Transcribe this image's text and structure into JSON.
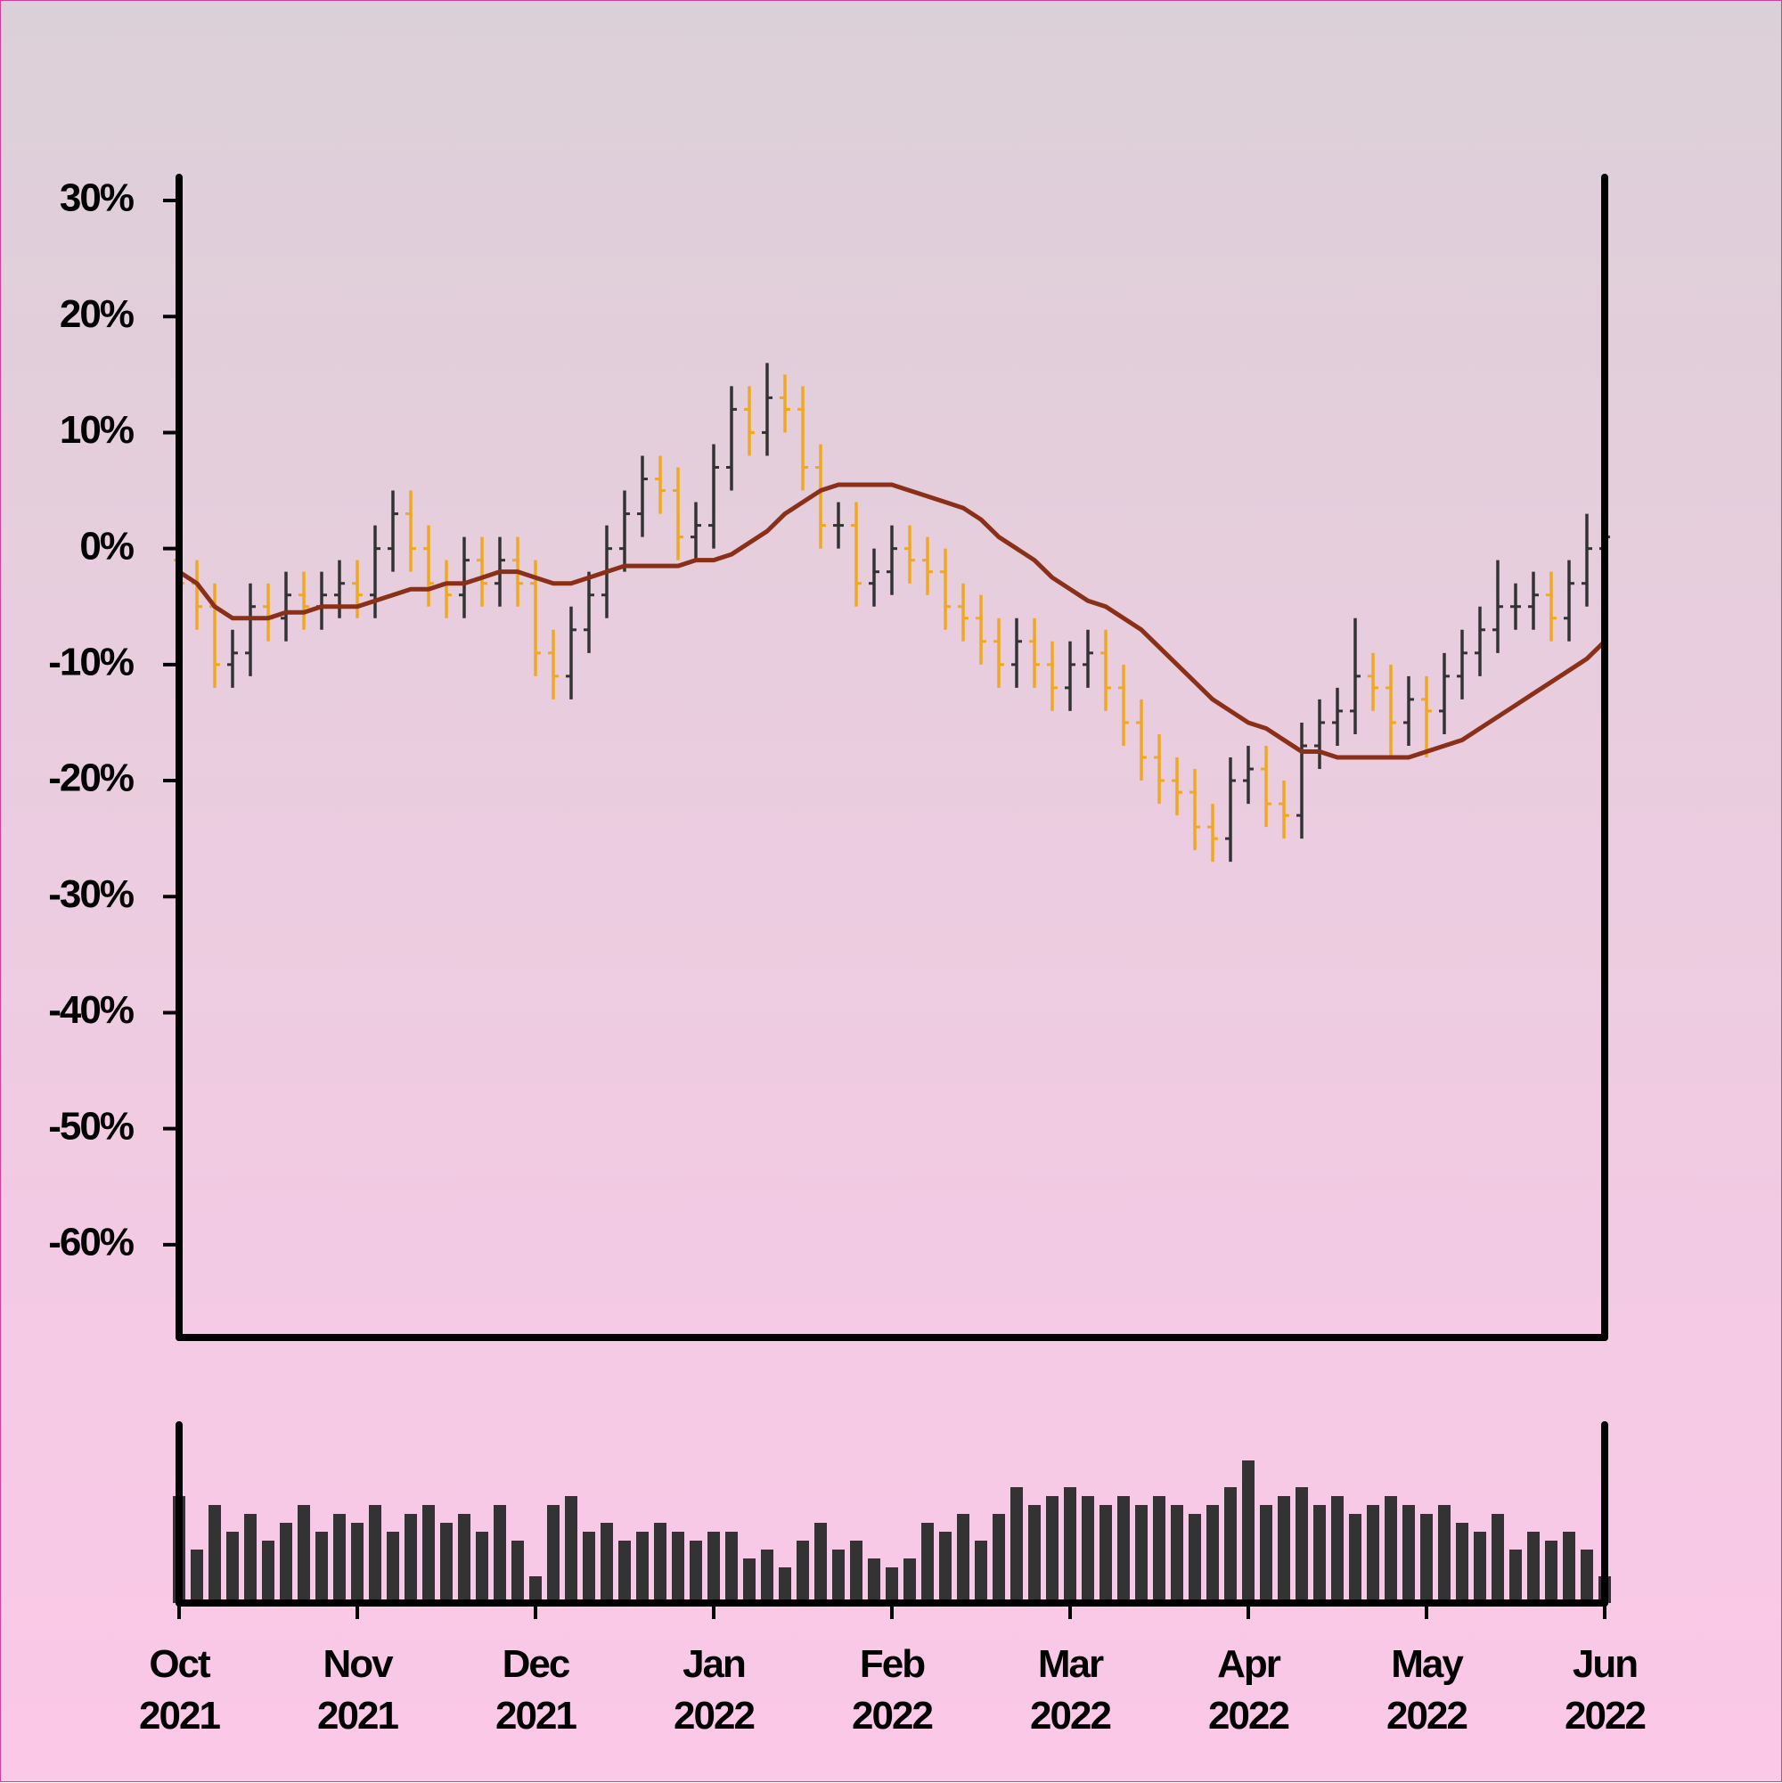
{
  "chart_data": {
    "type": "ohlc",
    "categories": [
      "Oct\n2021",
      null,
      null,
      null,
      null,
      null,
      null,
      null,
      null,
      null,
      "Nov\n2021",
      null,
      null,
      null,
      null,
      null,
      null,
      null,
      null,
      null,
      "Dec\n2021",
      null,
      null,
      null,
      null,
      null,
      null,
      null,
      null,
      null,
      "Jan\n2022",
      null,
      null,
      null,
      null,
      null,
      null,
      null,
      null,
      null,
      "Feb\n2022",
      null,
      null,
      null,
      null,
      null,
      null,
      null,
      null,
      null,
      "Mar\n2022",
      null,
      null,
      null,
      null,
      null,
      null,
      null,
      null,
      null,
      "Apr\n2022",
      null,
      null,
      null,
      null,
      null,
      null,
      null,
      null,
      null,
      "May\n2022",
      null,
      null,
      null,
      null,
      null,
      null,
      null,
      null,
      null,
      "Jun\n2022"
    ],
    "open": [
      -1,
      -3,
      -5,
      -10,
      -9,
      -5,
      -6,
      -4,
      -5,
      -4,
      -3,
      -4,
      0,
      3,
      0,
      -3,
      -4,
      -1,
      -3,
      -1,
      -3,
      -9,
      -11,
      -7,
      -4,
      0,
      3,
      6,
      5,
      1,
      2,
      7,
      12,
      10,
      13,
      12,
      7,
      2,
      2,
      -3,
      -2,
      0,
      -1,
      -2,
      -5,
      -6,
      -8,
      -10,
      -8,
      -10,
      -12,
      -10,
      -9,
      -12,
      -15,
      -18,
      -20,
      -21,
      -24,
      -25,
      -20,
      -19,
      -22,
      -23,
      -17,
      -15,
      -14,
      -11,
      -12,
      -15,
      -13,
      -14,
      -11,
      -9,
      -7,
      -5,
      -5,
      -4,
      -6,
      -3,
      0
    ],
    "high": [
      1,
      -1,
      -3,
      -7,
      -3,
      -3,
      -2,
      -2,
      -2,
      -1,
      -1,
      2,
      5,
      5,
      2,
      -1,
      1,
      1,
      1,
      1,
      -1,
      -7,
      -5,
      -2,
      2,
      5,
      8,
      8,
      7,
      4,
      9,
      14,
      14,
      16,
      15,
      14,
      9,
      4,
      4,
      0,
      2,
      2,
      1,
      0,
      -3,
      -4,
      -6,
      -6,
      -6,
      -8,
      -8,
      -7,
      -7,
      -10,
      -13,
      -16,
      -18,
      -19,
      -22,
      -18,
      -17,
      -17,
      -20,
      -15,
      -13,
      -12,
      -6,
      -9,
      -10,
      -11,
      -11,
      -9,
      -7,
      -5,
      -1,
      -3,
      -2,
      -2,
      -1,
      3,
      3
    ],
    "low": [
      -5,
      -7,
      -12,
      -12,
      -11,
      -8,
      -8,
      -7,
      -7,
      -6,
      -6,
      -6,
      -2,
      -2,
      -5,
      -6,
      -6,
      -5,
      -5,
      -5,
      -11,
      -13,
      -13,
      -9,
      -6,
      -2,
      1,
      3,
      -1,
      -1,
      0,
      5,
      8,
      8,
      10,
      5,
      0,
      0,
      -5,
      -5,
      -4,
      -3,
      -4,
      -7,
      -8,
      -10,
      -12,
      -12,
      -12,
      -14,
      -14,
      -12,
      -14,
      -17,
      -20,
      -22,
      -23,
      -26,
      -27,
      -27,
      -22,
      -24,
      -25,
      -25,
      -19,
      -17,
      -16,
      -14,
      -18,
      -17,
      -18,
      -16,
      -13,
      -11,
      -9,
      -7,
      -7,
      -8,
      -8,
      -5,
      -1
    ],
    "close": [
      -3,
      -5,
      -10,
      -9,
      -5,
      -6,
      -4,
      -5,
      -4,
      -3,
      -4,
      0,
      3,
      0,
      -3,
      -4,
      -1,
      -3,
      -1,
      -3,
      -9,
      -11,
      -7,
      -4,
      0,
      3,
      6,
      5,
      1,
      2,
      7,
      12,
      10,
      13,
      12,
      7,
      2,
      2,
      -3,
      -2,
      0,
      -1,
      -2,
      -5,
      -6,
      -8,
      -10,
      -8,
      -10,
      -12,
      -10,
      -9,
      -12,
      -15,
      -18,
      -20,
      -21,
      -24,
      -25,
      -20,
      -19,
      -22,
      -23,
      -17,
      -15,
      -14,
      -11,
      -12,
      -15,
      -13,
      -14,
      -11,
      -9,
      -7,
      -5,
      -5,
      -4,
      -6,
      -3,
      0,
      1
    ],
    "up_color": "#333333",
    "down_color": "#f0a820",
    "moving_average": {
      "color": "#8b3018",
      "values": [
        -2,
        -3,
        -5,
        -6,
        -6,
        -6,
        -5.5,
        -5.5,
        -5,
        -5,
        -5,
        -4.5,
        -4,
        -3.5,
        -3.5,
        -3,
        -3,
        -2.5,
        -2,
        -2,
        -2.5,
        -3,
        -3,
        -2.5,
        -2,
        -1.5,
        -1.5,
        -1.5,
        -1.5,
        -1,
        -1,
        -0.5,
        0.5,
        1.5,
        3,
        4,
        5,
        5.5,
        5.5,
        5.5,
        5.5,
        5,
        4.5,
        4,
        3.5,
        2.5,
        1,
        0,
        -1,
        -2.5,
        -3.5,
        -4.5,
        -5,
        -6,
        -7,
        -8.5,
        -10,
        -11.5,
        -13,
        -14,
        -15,
        -15.5,
        -16.5,
        -17.5,
        -17.5,
        -18,
        -18,
        -18,
        -18,
        -18,
        -17.5,
        -17,
        -16.5,
        -15.5,
        -14.5,
        -13.5,
        -12.5,
        -11.5,
        -10.5,
        -9.5,
        -8
      ]
    },
    "volume": {
      "color": "#333333",
      "ylim": [
        0,
        100
      ],
      "values": [
        60,
        30,
        55,
        40,
        50,
        35,
        45,
        55,
        40,
        50,
        45,
        55,
        40,
        50,
        55,
        45,
        50,
        40,
        55,
        35,
        15,
        55,
        60,
        40,
        45,
        35,
        40,
        45,
        40,
        35,
        40,
        40,
        25,
        30,
        20,
        35,
        45,
        30,
        35,
        25,
        20,
        25,
        45,
        40,
        50,
        35,
        50,
        65,
        55,
        60,
        65,
        60,
        55,
        60,
        55,
        60,
        55,
        50,
        55,
        65,
        80,
        55,
        60,
        65,
        55,
        60,
        50,
        55,
        60,
        55,
        50,
        55,
        45,
        40,
        50,
        30,
        40,
        35,
        40,
        30,
        15
      ]
    },
    "ylim": [
      -68,
      32
    ],
    "yticks": [
      {
        "value": 30,
        "label": "30%"
      },
      {
        "value": 20,
        "label": "20%"
      },
      {
        "value": 10,
        "label": "10%"
      },
      {
        "value": 0,
        "label": "0%"
      },
      {
        "value": -10,
        "label": "-10%"
      },
      {
        "value": -20,
        "label": "-20%"
      },
      {
        "value": -30,
        "label": "-30%"
      },
      {
        "value": -40,
        "label": "-40%"
      },
      {
        "value": -50,
        "label": "-50%"
      },
      {
        "value": -60,
        "label": "-60%"
      }
    ]
  }
}
